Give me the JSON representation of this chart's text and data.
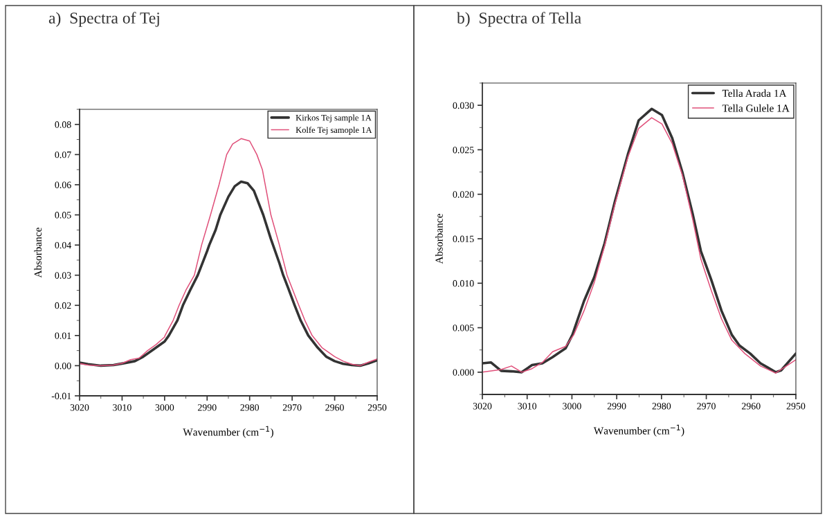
{
  "chart_data": [
    {
      "type": "line",
      "title": "a)  Spectra of Tej",
      "xlabel": "Wavenumber (cm$^{−1}$)",
      "ylabel": "Absorbance",
      "xlim": [
        3020,
        2950
      ],
      "xticks": [
        3020,
        3010,
        3000,
        2990,
        2980,
        2970,
        2960,
        2950
      ],
      "ylim": [
        -0.01,
        0.085
      ],
      "yticks": [
        {
          "value": -0.01,
          "label": "-0.01"
        },
        {
          "value": 0,
          "label": "0.00"
        },
        {
          "value": 0.01,
          "label": "0.01"
        },
        {
          "value": 0.02,
          "label": "0.02"
        },
        {
          "value": 0.03,
          "label": "0.03"
        },
        {
          "value": 0.04,
          "label": "0.04"
        },
        {
          "value": 0.05,
          "label": "0.05"
        },
        {
          "value": 0.06,
          "label": "0.06"
        },
        {
          "value": 0.07,
          "label": "0.07"
        },
        {
          "value": 0.08,
          "label": "0.08"
        }
      ],
      "legend": "top right",
      "grid": false,
      "marker": "none",
      "line_style": "solid",
      "series": [
        {
          "name": "Kirkos Tej sample 1A",
          "color": "#333333",
          "x": [
            3020,
            3018,
            3015,
            3012,
            3010,
            3007,
            3005,
            3002,
            3000,
            2999,
            2997,
            2995.7,
            2994,
            2992.2,
            2990,
            2989.5,
            2988,
            2986.9,
            2985,
            2983.5,
            2982,
            2980.5,
            2979,
            2976.8,
            2975,
            2973,
            2972.1,
            2971,
            2969.4,
            2968,
            2966.2,
            2964,
            2962,
            2960,
            2958,
            2956,
            2954,
            2952,
            2950
          ],
          "values": [
            0.001,
            0.0005,
            0.0,
            0.0002,
            0.0007,
            0.0015,
            0.003,
            0.006,
            0.008,
            0.01,
            0.015,
            0.02,
            0.025,
            0.03,
            0.038,
            0.04,
            0.045,
            0.05,
            0.056,
            0.0595,
            0.061,
            0.0605,
            0.058,
            0.05,
            0.042,
            0.034,
            0.03,
            0.026,
            0.02,
            0.015,
            0.01,
            0.006,
            0.003,
            0.0015,
            0.0006,
            0.0002,
            0.0,
            0.0008,
            0.0018
          ]
        },
        {
          "name": "Kolfe Tej samople 1A",
          "color": "#e0507a",
          "x": [
            3020,
            3018,
            3015,
            3012,
            3010,
            3008,
            3006,
            3004,
            3002,
            3000,
            2999.9,
            2998,
            2996.6,
            2995,
            2993,
            2991.3,
            2989.2,
            2987.2,
            2985.4,
            2984,
            2982,
            2980,
            2978.3,
            2977,
            2975,
            2973,
            2971.2,
            2969,
            2967,
            2965.3,
            2963,
            2960,
            2958,
            2956,
            2954,
            2952,
            2950
          ],
          "values": [
            0.0007,
            0.0002,
            0.0,
            0.0002,
            0.0008,
            0.002,
            0.0025,
            0.005,
            0.007,
            0.0095,
            0.01,
            0.015,
            0.02,
            0.025,
            0.03,
            0.04,
            0.05,
            0.06,
            0.07,
            0.0735,
            0.0753,
            0.0745,
            0.07,
            0.065,
            0.05,
            0.04,
            0.03,
            0.022,
            0.015,
            0.01,
            0.006,
            0.003,
            0.0015,
            0.0005,
            0.0,
            0.0012,
            0.0022
          ]
        }
      ]
    },
    {
      "type": "line",
      "title": "b)  Spectra of Tella",
      "xlabel": "Wavenumber (cm$^{−1}$)",
      "ylabel": "Absorbance",
      "xlim": [
        3020,
        2950
      ],
      "xticks": [
        3020,
        3010,
        3000,
        2990,
        2980,
        2970,
        2960,
        2950
      ],
      "ylim": [
        -0.0025,
        0.0325
      ],
      "yticks": [
        {
          "value": 0,
          "label": "0.000"
        },
        {
          "value": 0.005,
          "label": "0.005"
        },
        {
          "value": 0.01,
          "label": "0.010"
        },
        {
          "value": 0.015,
          "label": "0.015"
        },
        {
          "value": 0.02,
          "label": "0.020"
        },
        {
          "value": 0.025,
          "label": "0.025"
        },
        {
          "value": 0.03,
          "label": "0.030"
        }
      ],
      "legend": "top right",
      "grid": false,
      "marker": "none",
      "line_style": "solid",
      "series": [
        {
          "name": "Tella Arada 1A",
          "color": "#333333",
          "x": [
            3020,
            3018.1,
            3015.8,
            3013.5,
            3011.2,
            3008.9,
            3006.6,
            3004.3,
            3001.4,
            2999.9,
            2997.3,
            2995.0,
            2992.7,
            2990.4,
            2987.5,
            2985.1,
            2982.2,
            2979.9,
            2977.6,
            2975.3,
            2973.0,
            2971.2,
            2968.9,
            2966.6,
            2964.3,
            2962.6,
            2960.2,
            2957.9,
            2956.2,
            2954.5,
            2953.3,
            2950
          ],
          "values": [
            0.001,
            0.0011,
            0.00015,
            0.0001,
            0.0,
            0.0008,
            0.001,
            0.0017,
            0.0027,
            0.0042,
            0.008,
            0.0107,
            0.0145,
            0.0192,
            0.0245,
            0.0283,
            0.0296,
            0.0289,
            0.0263,
            0.0224,
            0.0177,
            0.0136,
            0.0104,
            0.0069,
            0.0042,
            0.003,
            0.0021,
            0.001,
            0.0005,
            0.0,
            0.0002,
            0.0021
          ]
        },
        {
          "name": "Tella Gulele 1A",
          "color": "#e0507a",
          "x": [
            3020,
            3015.8,
            3013.5,
            3011.2,
            3008.9,
            3006.6,
            3004.3,
            3001.4,
            2999.6,
            2997.3,
            2995.0,
            2992.7,
            2990.4,
            2987.5,
            2985.1,
            2982.2,
            2979.9,
            2977.6,
            2975.3,
            2973.0,
            2971.2,
            2968.9,
            2966.6,
            2964.3,
            2961.4,
            2957.9,
            2954.5,
            2950
          ],
          "values": [
            0.0,
            0.0003,
            0.0007,
            0.0,
            0.0004,
            0.0011,
            0.0023,
            0.0029,
            0.0042,
            0.0069,
            0.0101,
            0.0142,
            0.0189,
            0.0242,
            0.0274,
            0.0286,
            0.0279,
            0.0257,
            0.0221,
            0.0171,
            0.0127,
            0.0092,
            0.006,
            0.0036,
            0.0021,
            0.0007,
            -0.0001,
            0.0014
          ]
        }
      ]
    }
  ]
}
